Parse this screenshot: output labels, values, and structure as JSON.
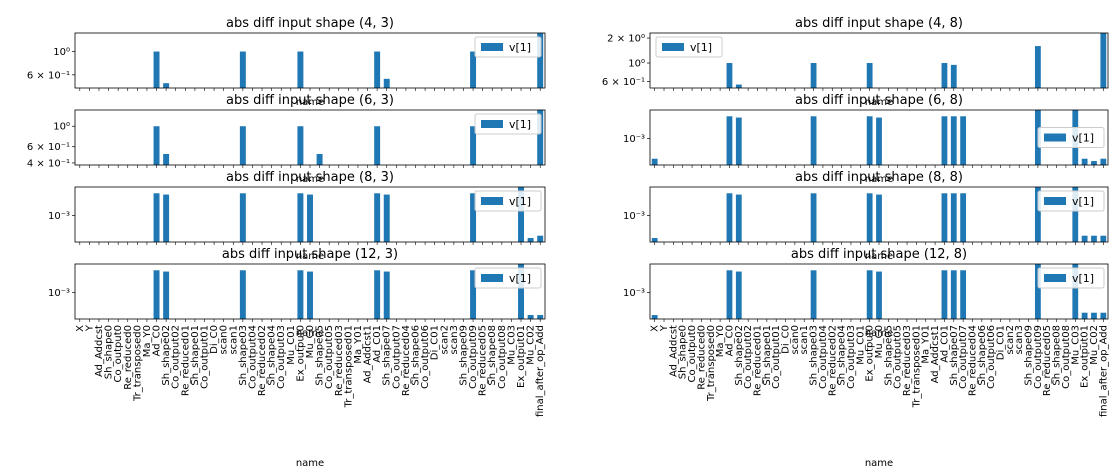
{
  "categories": [
    "X",
    "Y",
    "Ad_Addcst",
    "Sh_shape0",
    "Co_output0",
    "Re_reduced0",
    "Tr_transposed0",
    "Ma_Y0",
    "Ad_C0",
    "Sh_shape02",
    "Co_output02",
    "Re_reduced01",
    "Sh_shape01",
    "Co_output01",
    "Di_C0",
    "scan0",
    "scan1",
    "Sh_shape03",
    "Co_output04",
    "Re_reduced02",
    "Sh_shape04",
    "Co_output03",
    "Mu_C01",
    "Ex_output0",
    "Mu_C0",
    "Sh_shape05",
    "Co_output05",
    "Re_reduced03",
    "Tr_transposed01",
    "Ma_Y01",
    "Ad_Addcst1",
    "Ad_C01",
    "Sh_shape07",
    "Co_output07",
    "Re_reduced04",
    "Sh_shape06",
    "Co_output06",
    "Di_C01",
    "scan2",
    "scan3",
    "Sh_shape09",
    "Co_output09",
    "Re_reduced05",
    "Sh_shape08",
    "Co_output08",
    "Mu_C03",
    "Ex_output01",
    "Mu_C02",
    "final_after_op_Add"
  ],
  "chart_data": [
    {
      "type": "bar",
      "title": "abs diff input shape (4, 3)",
      "xlabel": "name",
      "scale": "log",
      "ylim": [
        0.45,
        1.5
      ],
      "yticks": [
        {
          "v": 1.0,
          "label": "10⁰"
        },
        {
          "v": 0.6,
          "label": "6 × 10⁻¹"
        }
      ],
      "legend": "top-right",
      "series": [
        {
          "name": "v[1]",
          "values": [
            null,
            null,
            null,
            null,
            null,
            null,
            null,
            null,
            1.0,
            0.5,
            null,
            null,
            null,
            null,
            null,
            null,
            null,
            1.0,
            null,
            null,
            null,
            null,
            null,
            1.0,
            null,
            null,
            null,
            null,
            null,
            null,
            null,
            1.0,
            0.55,
            null,
            null,
            null,
            null,
            null,
            null,
            null,
            null,
            1.0,
            null,
            null,
            null,
            null,
            null,
            null,
            1.5
          ]
        }
      ]
    },
    {
      "type": "bar",
      "title": "abs diff input shape (4, 8)",
      "xlabel": "name",
      "scale": "log",
      "ylim": [
        0.5,
        2.3
      ],
      "yticks": [
        {
          "v": 2.0,
          "label": "2 × 10⁰"
        },
        {
          "v": 1.0,
          "label": "10⁰"
        },
        {
          "v": 0.6,
          "label": "6 × 10⁻¹"
        }
      ],
      "legend": "top-left",
      "series": [
        {
          "name": "v[1]",
          "values": [
            null,
            null,
            null,
            null,
            null,
            null,
            null,
            null,
            1.0,
            0.55,
            null,
            null,
            null,
            null,
            null,
            null,
            null,
            1.0,
            null,
            null,
            null,
            null,
            null,
            1.0,
            null,
            null,
            null,
            null,
            null,
            null,
            null,
            1.0,
            0.95,
            null,
            null,
            null,
            null,
            null,
            null,
            null,
            null,
            1.6,
            null,
            null,
            null,
            null,
            null,
            null,
            2.3
          ]
        }
      ]
    },
    {
      "type": "bar",
      "title": "abs diff input shape (6, 3)",
      "xlabel": "name",
      "scale": "log",
      "ylim": [
        0.38,
        1.5
      ],
      "yticks": [
        {
          "v": 1.0,
          "label": "10⁰"
        },
        {
          "v": 0.6,
          "label": "6 × 10⁻¹"
        },
        {
          "v": 0.4,
          "label": "4 × 10⁻¹"
        }
      ],
      "legend": "top-right",
      "series": [
        {
          "name": "v[1]",
          "values": [
            null,
            null,
            null,
            null,
            null,
            null,
            null,
            null,
            1.0,
            0.5,
            null,
            null,
            null,
            null,
            null,
            null,
            null,
            1.0,
            null,
            null,
            null,
            null,
            null,
            1.0,
            null,
            0.5,
            null,
            null,
            null,
            null,
            null,
            1.0,
            null,
            null,
            null,
            null,
            null,
            null,
            null,
            null,
            null,
            1.0,
            null,
            null,
            null,
            null,
            null,
            null,
            1.5
          ]
        }
      ]
    },
    {
      "type": "bar",
      "title": "abs diff input shape (6, 8)",
      "xlabel": "name",
      "scale": "log",
      "ylim": [
        1e-05,
        0.15
      ],
      "yticks": [
        {
          "v": 0.001,
          "label": "10⁻³"
        }
      ],
      "legend": "right",
      "series": [
        {
          "name": "v[1]",
          "values": [
            3e-05,
            null,
            null,
            null,
            null,
            null,
            null,
            null,
            0.05,
            0.04,
            null,
            null,
            null,
            null,
            null,
            null,
            null,
            0.05,
            null,
            null,
            null,
            null,
            null,
            0.05,
            0.04,
            null,
            null,
            null,
            null,
            null,
            null,
            0.05,
            0.05,
            0.05,
            null,
            null,
            null,
            null,
            null,
            null,
            null,
            0.15,
            null,
            null,
            null,
            0.15,
            3e-05,
            2e-05,
            3e-05
          ]
        }
      ]
    },
    {
      "type": "bar",
      "title": "abs diff input shape (8, 3)",
      "xlabel": "name",
      "scale": "log",
      "ylim": [
        1e-05,
        0.15
      ],
      "yticks": [
        {
          "v": 0.001,
          "label": "10⁻³"
        }
      ],
      "legend": "top-right",
      "series": [
        {
          "name": "v[1]",
          "values": [
            null,
            null,
            null,
            null,
            null,
            null,
            null,
            null,
            0.05,
            0.04,
            null,
            null,
            null,
            null,
            null,
            null,
            null,
            0.05,
            null,
            null,
            null,
            null,
            null,
            0.05,
            0.04,
            null,
            null,
            null,
            null,
            null,
            null,
            0.05,
            0.04,
            null,
            null,
            null,
            null,
            null,
            null,
            null,
            null,
            0.05,
            null,
            null,
            null,
            null,
            0.15,
            2e-05,
            3e-05
          ]
        }
      ]
    },
    {
      "type": "bar",
      "title": "abs diff input shape (8, 8)",
      "xlabel": "name",
      "scale": "log",
      "ylim": [
        1e-05,
        0.15
      ],
      "yticks": [
        {
          "v": 0.001,
          "label": "10⁻³"
        }
      ],
      "legend": "top-right",
      "series": [
        {
          "name": "v[1]",
          "values": [
            2e-05,
            null,
            null,
            null,
            null,
            null,
            null,
            null,
            0.05,
            0.04,
            null,
            null,
            null,
            null,
            null,
            null,
            null,
            0.05,
            null,
            null,
            null,
            null,
            null,
            0.05,
            0.04,
            null,
            null,
            null,
            null,
            null,
            null,
            0.05,
            0.05,
            0.05,
            null,
            null,
            null,
            null,
            null,
            null,
            null,
            0.15,
            null,
            null,
            null,
            0.15,
            3e-05,
            3e-05,
            3e-05
          ]
        }
      ]
    },
    {
      "type": "bar",
      "title": "abs diff input shape (12, 3)",
      "xlabel": "name",
      "scale": "log",
      "ylim": [
        1e-05,
        0.15
      ],
      "yticks": [
        {
          "v": 0.001,
          "label": "10⁻³"
        }
      ],
      "legend": "top-right",
      "series": [
        {
          "name": "v[1]",
          "values": [
            null,
            null,
            null,
            null,
            null,
            null,
            null,
            null,
            0.05,
            0.04,
            null,
            null,
            null,
            null,
            null,
            null,
            null,
            0.05,
            null,
            null,
            null,
            null,
            null,
            0.05,
            0.04,
            null,
            null,
            null,
            null,
            null,
            null,
            0.05,
            0.04,
            null,
            null,
            null,
            null,
            null,
            null,
            null,
            null,
            0.05,
            null,
            null,
            null,
            null,
            0.15,
            2e-05,
            2e-05
          ]
        }
      ]
    },
    {
      "type": "bar",
      "title": "abs diff input shape (12, 8)",
      "xlabel": "name",
      "scale": "log",
      "ylim": [
        1e-05,
        0.15
      ],
      "yticks": [
        {
          "v": 0.001,
          "label": "10⁻³"
        }
      ],
      "legend": "top-right",
      "series": [
        {
          "name": "v[1]",
          "values": [
            2e-05,
            null,
            null,
            null,
            null,
            null,
            null,
            null,
            0.05,
            0.04,
            null,
            null,
            null,
            null,
            null,
            null,
            null,
            0.05,
            null,
            null,
            null,
            null,
            null,
            0.05,
            0.04,
            null,
            null,
            null,
            null,
            null,
            null,
            0.05,
            0.05,
            0.05,
            null,
            null,
            null,
            null,
            null,
            null,
            null,
            0.15,
            null,
            null,
            null,
            0.15,
            3e-05,
            3e-05,
            3e-05
          ]
        }
      ]
    }
  ],
  "colors": {
    "bar": "#1f77b4",
    "axis": "#000000",
    "legend_border": "#cccccc"
  }
}
